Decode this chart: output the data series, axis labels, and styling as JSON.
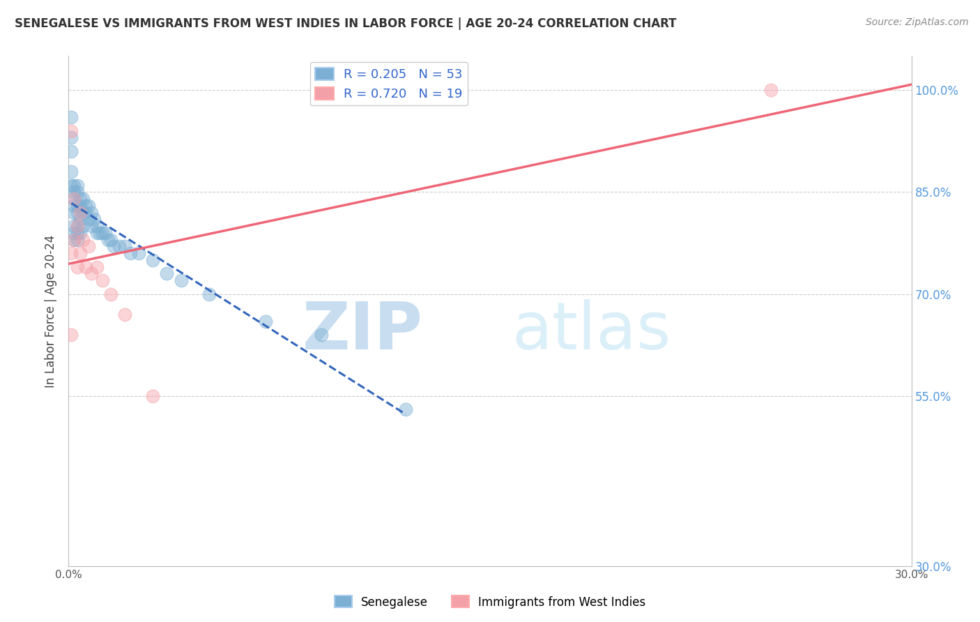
{
  "title": "SENEGALESE VS IMMIGRANTS FROM WEST INDIES IN LABOR FORCE | AGE 20-24 CORRELATION CHART",
  "source": "Source: ZipAtlas.com",
  "ylabel": "In Labor Force | Age 20-24",
  "xlim": [
    0.0,
    0.3
  ],
  "ylim": [
    0.3,
    1.05
  ],
  "xtick_pos": [
    0.0,
    0.05,
    0.1,
    0.15,
    0.2,
    0.25,
    0.3
  ],
  "xtick_labels": [
    "0.0%",
    "",
    "",
    "",
    "",
    "",
    "30.0%"
  ],
  "ytick_pos": [
    0.3,
    0.55,
    0.7,
    0.85,
    1.0
  ],
  "ytick_labels": [
    "30.0%",
    "55.0%",
    "70.0%",
    "85.0%",
    "100.0%"
  ],
  "blue_R": 0.205,
  "blue_N": 53,
  "pink_R": 0.72,
  "pink_N": 19,
  "blue_color": "#7BAFD4",
  "pink_color": "#F4A0A8",
  "blue_line_color": "#3366BB",
  "pink_line_color": "#EE6677",
  "legend_label_blue": "Senegalese",
  "legend_label_pink": "Immigrants from West Indies",
  "blue_scatter_x": [
    0.001,
    0.001,
    0.001,
    0.001,
    0.001,
    0.002,
    0.002,
    0.002,
    0.002,
    0.002,
    0.002,
    0.002,
    0.002,
    0.003,
    0.003,
    0.003,
    0.003,
    0.003,
    0.003,
    0.003,
    0.004,
    0.004,
    0.004,
    0.004,
    0.005,
    0.005,
    0.005,
    0.006,
    0.006,
    0.007,
    0.007,
    0.008,
    0.008,
    0.009,
    0.01,
    0.01,
    0.011,
    0.012,
    0.013,
    0.014,
    0.015,
    0.016,
    0.018,
    0.02,
    0.022,
    0.025,
    0.03,
    0.035,
    0.04,
    0.05,
    0.07,
    0.09,
    0.12
  ],
  "blue_scatter_y": [
    0.96,
    0.93,
    0.91,
    0.88,
    0.86,
    0.86,
    0.85,
    0.84,
    0.83,
    0.82,
    0.8,
    0.79,
    0.78,
    0.86,
    0.85,
    0.83,
    0.82,
    0.8,
    0.79,
    0.78,
    0.84,
    0.83,
    0.81,
    0.79,
    0.84,
    0.82,
    0.8,
    0.83,
    0.82,
    0.83,
    0.81,
    0.82,
    0.8,
    0.81,
    0.8,
    0.79,
    0.79,
    0.79,
    0.79,
    0.78,
    0.78,
    0.77,
    0.77,
    0.77,
    0.76,
    0.76,
    0.75,
    0.73,
    0.72,
    0.7,
    0.66,
    0.64,
    0.53
  ],
  "pink_scatter_x": [
    0.001,
    0.001,
    0.001,
    0.002,
    0.002,
    0.003,
    0.003,
    0.004,
    0.004,
    0.005,
    0.006,
    0.007,
    0.008,
    0.01,
    0.012,
    0.015,
    0.02,
    0.03,
    0.25
  ],
  "pink_scatter_y": [
    0.94,
    0.76,
    0.64,
    0.84,
    0.78,
    0.8,
    0.74,
    0.82,
    0.76,
    0.78,
    0.74,
    0.77,
    0.73,
    0.74,
    0.72,
    0.7,
    0.67,
    0.55,
    1.0
  ],
  "blue_line_x_start": 0.001,
  "blue_line_x_end": 0.12,
  "pink_line_x_start": 0.0,
  "pink_line_x_end": 0.3,
  "grid_color": "#CCCCCC",
  "tick_color": "#5599DD",
  "watermark_zip_color": "#C8DDEF",
  "watermark_atlas_color": "#D8EEF8"
}
